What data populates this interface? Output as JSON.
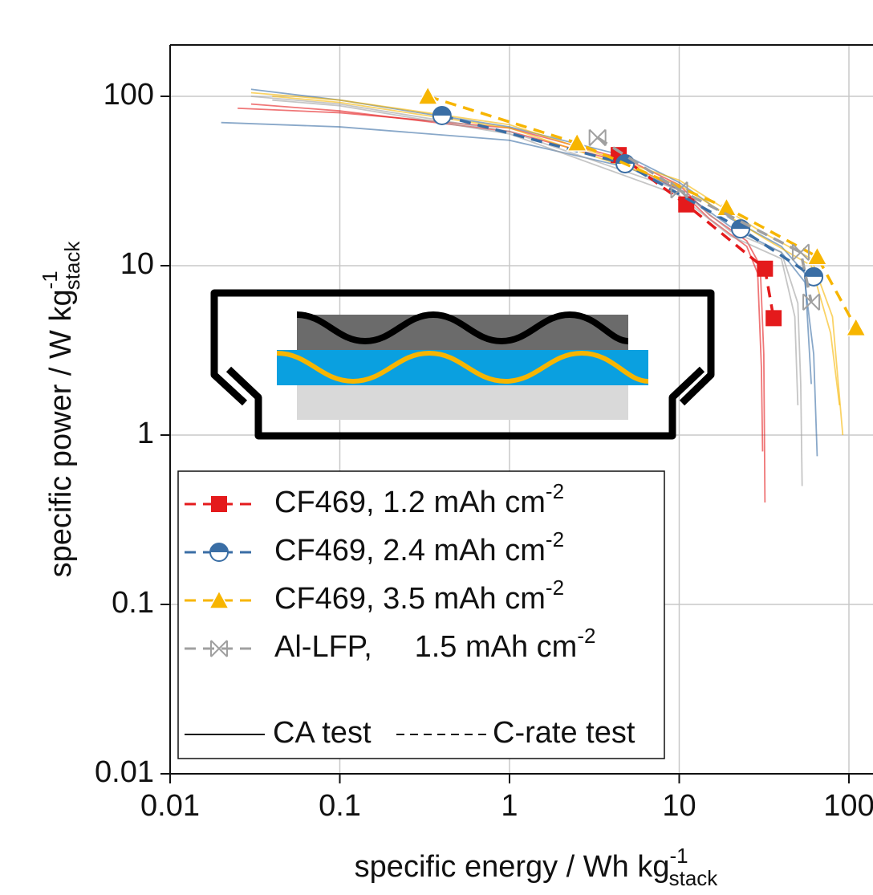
{
  "chart_data": {
    "type": "line",
    "x_label": "specific energy / Wh kg",
    "x_label_sup": "-1",
    "x_label_sub": "stack",
    "y_label": "specific power / W kg",
    "y_label_sup": "-1",
    "y_label_sub": "stack",
    "log_x": true,
    "log_y": true,
    "grid": true,
    "xlim": [
      0.01,
      140
    ],
    "ylim": [
      0.01,
      200
    ],
    "xticks": [
      0.01,
      0.1,
      1,
      10,
      100
    ],
    "yticks": [
      0.01,
      0.1,
      1,
      10,
      100
    ],
    "series": [
      {
        "name": "CF469, 1.2 mAh cm",
        "name_sup": "-2",
        "color": "#e41a1c",
        "marker": "square",
        "x": [
          4.4,
          11,
          32,
          36
        ],
        "values": [
          45,
          23,
          9.6,
          4.9
        ],
        "ca_curves": [
          {
            "x": [
              0.025,
              0.1,
              1,
              5,
              10,
              15,
              25,
              30,
              31.5,
              32
            ],
            "values": [
              85,
              80,
              65,
              42,
              30,
              20,
              14,
              10,
              3,
              0.4
            ]
          },
          {
            "x": [
              0.03,
              0.1,
              1,
              5,
              10,
              15,
              25,
              29,
              30.5,
              31
            ],
            "values": [
              90,
              82,
              62,
              40,
              28,
              19,
              13,
              9,
              2.5,
              0.8
            ]
          }
        ]
      },
      {
        "name": "CF469, 2.4 mAh cm",
        "name_sup": "-2",
        "color": "#3a6ea5",
        "marker": "half-circle",
        "x": [
          0.4,
          4.8,
          23,
          62
        ],
        "values": [
          77,
          40,
          16.5,
          8.6
        ],
        "ca_curves": [
          {
            "x": [
              0.02,
              0.1,
              1,
              5,
              10,
              20,
              40,
              55,
              62,
              65
            ],
            "values": [
              70,
              66,
              55,
              38,
              28,
              17,
              12,
              8,
              3,
              0.75
            ]
          },
          {
            "x": [
              0.03,
              0.1,
              1,
              5,
              10,
              20,
              40,
              55,
              60
            ],
            "values": [
              110,
              95,
              66,
              44,
              31,
              19,
              13,
              9,
              2
            ]
          }
        ]
      },
      {
        "name": "CF469, 3.5 mAh cm",
        "name_sup": "-2",
        "color": "#f7b500",
        "marker": "triangle",
        "x": [
          0.33,
          2.5,
          19,
          65,
          110
        ],
        "values": [
          100,
          53,
          22,
          11.3,
          4.3
        ],
        "ca_curves": [
          {
            "x": [
              0.03,
              0.1,
              1,
              10,
              30,
              60,
              80,
              92
            ],
            "values": [
              105,
              95,
              68,
              32,
              16,
              11,
              5,
              1
            ]
          },
          {
            "x": [
              0.04,
              0.1,
              1,
              10,
              30,
              60,
              78,
              88
            ],
            "values": [
              100,
              92,
              65,
              30,
              15,
              10,
              4,
              1.5
            ]
          }
        ]
      },
      {
        "name": "Al-LFP,     1.5 mAh cm",
        "name_sup": "-2",
        "color": "#a0a0a0",
        "marker": "x",
        "x": [
          3.3,
          10,
          52,
          60
        ],
        "values": [
          57,
          28,
          12,
          6.1
        ],
        "ca_curves": [
          {
            "x": [
              0.03,
              0.1,
              1,
              10,
              20,
              40,
              50,
              52,
              53
            ],
            "values": [
              100,
              90,
              62,
              28,
              16,
              12,
              6,
              2,
              0.5
            ]
          },
          {
            "x": [
              0.04,
              0.1,
              1,
              10,
              20,
              40,
              48,
              50
            ],
            "values": [
              95,
              88,
              60,
              26,
              15,
              11,
              5,
              1.5
            ]
          }
        ]
      }
    ],
    "style_legend": [
      "CA test",
      "C-rate test"
    ]
  }
}
